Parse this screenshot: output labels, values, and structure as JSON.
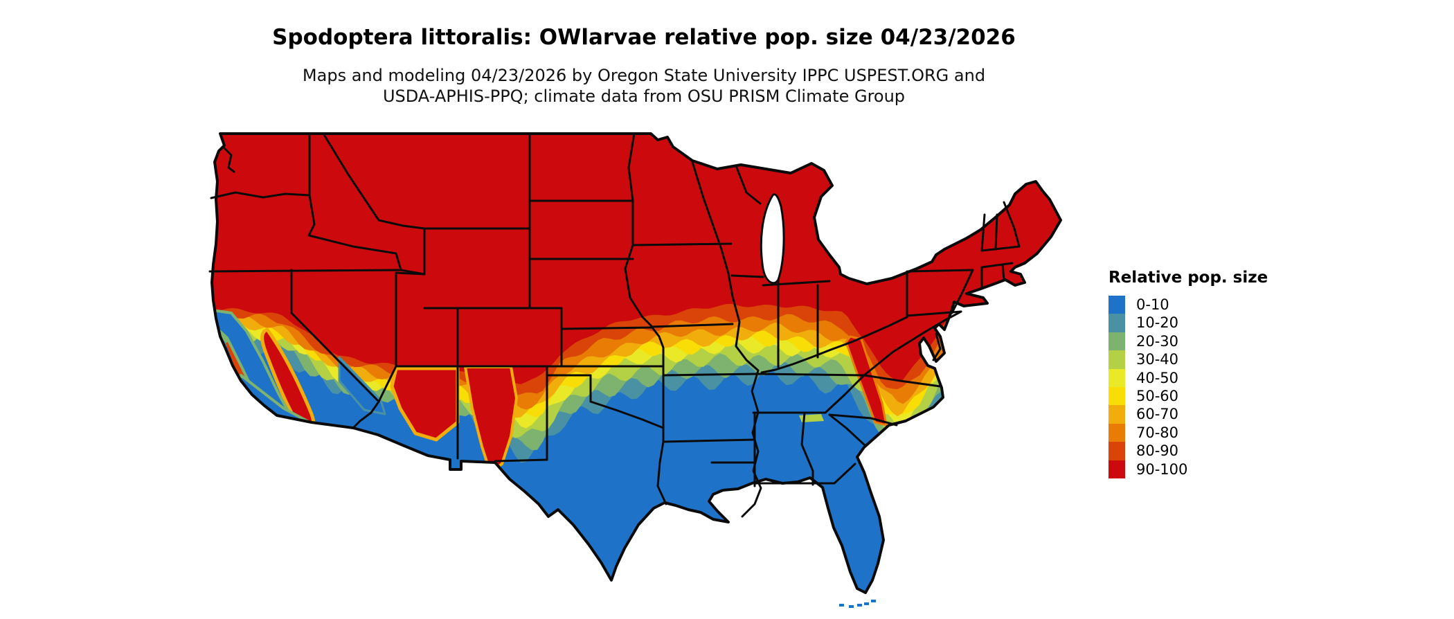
{
  "title": "Spodoptera littoralis: OWlarvae relative pop. size 04/23/2026",
  "subtitle": {
    "line1": "Maps and modeling 04/23/2026 by Oregon State University IPPC USPEST.ORG and",
    "line2": "USDA-APHIS-PPQ; climate data from OSU PRISM Climate Group"
  },
  "legend": {
    "title": "Relative pop. size",
    "items": [
      {
        "label": "0-10",
        "color": "#1E73C8"
      },
      {
        "label": "10-20",
        "color": "#4A92A3"
      },
      {
        "label": "20-30",
        "color": "#7DB26F"
      },
      {
        "label": "30-40",
        "color": "#B4D044"
      },
      {
        "label": "40-50",
        "color": "#E9E928"
      },
      {
        "label": "50-60",
        "color": "#F8DE06"
      },
      {
        "label": "60-70",
        "color": "#F0AD0C"
      },
      {
        "label": "70-80",
        "color": "#E87C05"
      },
      {
        "label": "80-90",
        "color": "#DB4408"
      },
      {
        "label": "90-100",
        "color": "#CC0A0E"
      }
    ]
  },
  "map": {
    "region": "Continental United States",
    "border_color": "#0a0a0a",
    "water_color": "#ffffff"
  }
}
